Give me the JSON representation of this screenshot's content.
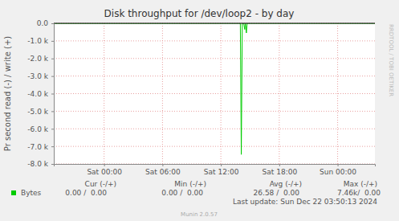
{
  "chart_data": {
    "type": "line",
    "title": "Disk throughput for /dev/loop2 - by day",
    "y_label": "Pr second read (-) / write (+)",
    "x": [
      -5.17,
      14.0,
      14.1,
      14.2,
      14.35,
      14.45,
      14.52,
      14.62,
      14.7,
      27.83
    ],
    "series": [
      {
        "name": "Bytes",
        "color": "#00cc00",
        "values": [
          0,
          0,
          -7460,
          0,
          0,
          -350,
          0,
          -550,
          0,
          0
        ]
      }
    ],
    "xlim": [
      -5.17,
      27.83
    ],
    "xticks": [
      {
        "value": 0,
        "label": "Sat 00:00"
      },
      {
        "value": 6,
        "label": "Sat 06:00"
      },
      {
        "value": 12,
        "label": "Sat 12:00"
      },
      {
        "value": 18,
        "label": "Sat 18:00"
      },
      {
        "value": 24,
        "label": "Sun 00:00"
      }
    ],
    "ylim": [
      -8000,
      0
    ],
    "yticks": [
      {
        "value": 0,
        "label": "0.0"
      },
      {
        "value": -1000,
        "label": "-1.0 k"
      },
      {
        "value": -2000,
        "label": "-2.0 k"
      },
      {
        "value": -3000,
        "label": "-3.0 k"
      },
      {
        "value": -4000,
        "label": "-4.0 k"
      },
      {
        "value": -5000,
        "label": "-5.0 k"
      },
      {
        "value": -6000,
        "label": "-6.0 k"
      },
      {
        "value": -7000,
        "label": "-7.0 k"
      },
      {
        "value": -8000,
        "label": "-8.0 k"
      }
    ],
    "grid": true,
    "summary": {
      "headers": [
        "Cur (-/+)",
        "Min (-/+)",
        "Avg (-/+)",
        "Max (-/+)"
      ],
      "values": [
        "0.00 /  0.00",
        "0.00 /  0.00",
        "26.58 /  0.00",
        "7.46k/  0.00"
      ]
    },
    "annotations": [
      "Last update: Sun Dec 22 03:50:13 2024",
      "Munin 2.0.57",
      "RRDTOOL / TOBI OETIKER"
    ]
  }
}
